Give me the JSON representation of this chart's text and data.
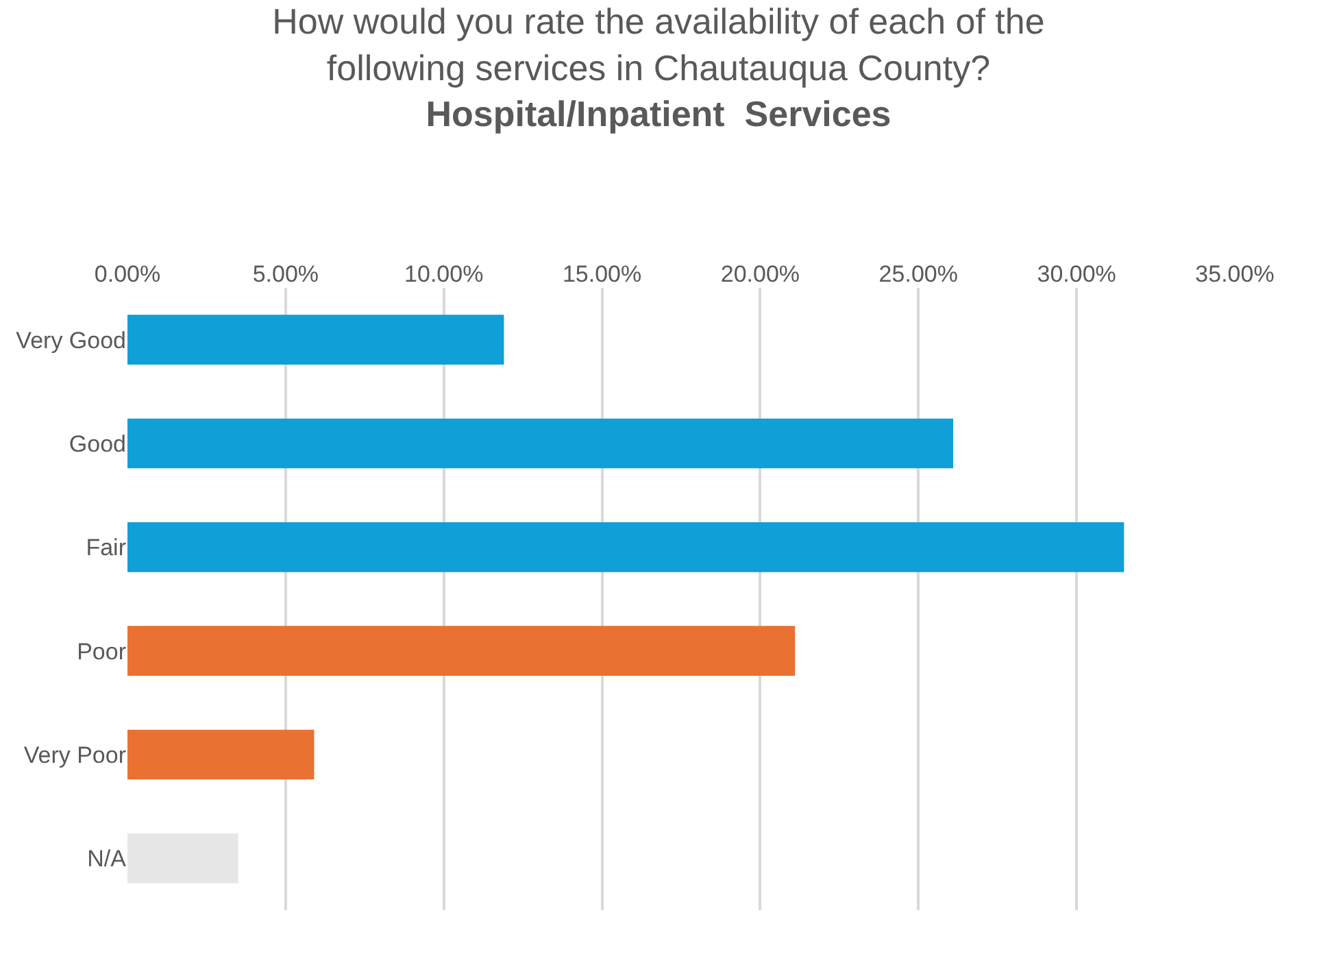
{
  "chart_data": {
    "type": "bar",
    "orientation": "horizontal",
    "title": "How would you rate the availability of each of the following services in Chautauqua County?",
    "subtitle": "Hospital/Inpatient  Services",
    "categories": [
      "Very Good",
      "Good",
      "Fair",
      "Poor",
      "Very Poor",
      "N/A"
    ],
    "values": [
      11.9,
      26.1,
      31.5,
      21.1,
      5.9,
      3.5
    ],
    "colors": [
      "#109fd6",
      "#109fd6",
      "#109fd6",
      "#e97132",
      "#e97132",
      "#e6e6e6"
    ],
    "xlim": [
      0,
      35
    ],
    "xticks": [
      {
        "value": 0,
        "label": "0.00%"
      },
      {
        "value": 5,
        "label": "5.00%"
      },
      {
        "value": 10,
        "label": "10.00%"
      },
      {
        "value": 15,
        "label": "15.00%"
      },
      {
        "value": 20,
        "label": "20.00%"
      },
      {
        "value": 25,
        "label": "25.00%"
      },
      {
        "value": 30,
        "label": "30.00%"
      },
      {
        "value": 35,
        "label": "35.00%"
      }
    ],
    "grid": "x",
    "legend": false
  }
}
